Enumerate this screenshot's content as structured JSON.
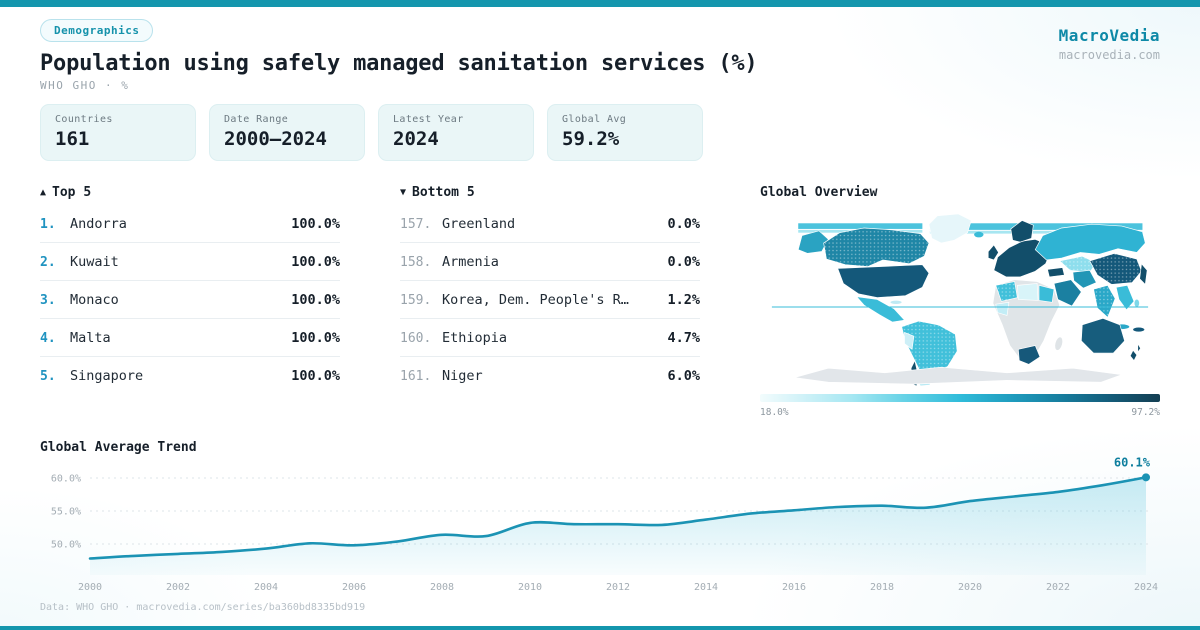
{
  "header": {
    "badge": "Demographics",
    "title": "Population using safely managed sanitation services (%)",
    "subtitle": "WHO GHO · %",
    "brand": "MacroVedia",
    "brand_domain": "macrovedia.com"
  },
  "stats": [
    {
      "label": "Countries",
      "value": "161"
    },
    {
      "label": "Date Range",
      "value": "2000–2024"
    },
    {
      "label": "Latest Year",
      "value": "2024"
    },
    {
      "label": "Global Avg",
      "value": "59.2%"
    }
  ],
  "top5": {
    "arrow": "▲",
    "title": "Top 5",
    "items": [
      {
        "rank": "1.",
        "name": "Andorra",
        "value": "100.0%"
      },
      {
        "rank": "2.",
        "name": "Kuwait",
        "value": "100.0%"
      },
      {
        "rank": "3.",
        "name": "Monaco",
        "value": "100.0%"
      },
      {
        "rank": "4.",
        "name": "Malta",
        "value": "100.0%"
      },
      {
        "rank": "5.",
        "name": "Singapore",
        "value": "100.0%"
      }
    ]
  },
  "bottom5": {
    "arrow": "▼",
    "title": "Bottom 5",
    "items": [
      {
        "rank": "157.",
        "name": "Greenland",
        "value": "0.0%"
      },
      {
        "rank": "158.",
        "name": "Armenia",
        "value": "0.0%"
      },
      {
        "rank": "159.",
        "name": "Korea, Dem. People's R…",
        "value": "1.2%"
      },
      {
        "rank": "160.",
        "name": "Ethiopia",
        "value": "4.7%"
      },
      {
        "rank": "161.",
        "name": "Niger",
        "value": "6.0%"
      }
    ]
  },
  "map": {
    "title": "Global Overview",
    "scale_min": "18.0%",
    "scale_max": "97.2%",
    "ramp": [
      "#f2fcfd",
      "#a5e7f2",
      "#30bcda",
      "#1f9cbe",
      "#145d7b",
      "#143e52"
    ],
    "no_data_color": "#e0e5e8"
  },
  "trend": {
    "title": "Global Average Trend",
    "line_color": "#1b93b4",
    "end_label": "60.1%"
  },
  "chart_data": {
    "type": "area",
    "title": "Global Average Trend",
    "x": [
      2000,
      2001,
      2002,
      2003,
      2004,
      2005,
      2006,
      2007,
      2008,
      2009,
      2010,
      2011,
      2012,
      2013,
      2014,
      2015,
      2016,
      2017,
      2018,
      2019,
      2020,
      2021,
      2022,
      2023,
      2024
    ],
    "values": [
      47.8,
      48.2,
      48.5,
      48.8,
      49.3,
      50.1,
      49.8,
      50.4,
      51.4,
      51.2,
      53.2,
      53.0,
      53.0,
      52.9,
      53.7,
      54.6,
      55.1,
      55.6,
      55.8,
      55.5,
      56.5,
      57.2,
      57.9,
      58.9,
      60.1
    ],
    "xticks": [
      2000,
      2002,
      2004,
      2006,
      2008,
      2010,
      2012,
      2014,
      2016,
      2018,
      2020,
      2022,
      2024
    ],
    "yticks": [
      {
        "value": 50,
        "label": "50.0%"
      },
      {
        "value": 55,
        "label": "55.0%"
      },
      {
        "value": 60,
        "label": "60.0%"
      }
    ],
    "ylim": [
      46.5,
      62
    ],
    "grid": "horizontal-dashed",
    "end_annotation": "60.1%",
    "xlabel": "",
    "ylabel": "%"
  },
  "footer": {
    "text": "Data: WHO GHO · macrovedia.com/series/ba360bd8335bd919"
  }
}
